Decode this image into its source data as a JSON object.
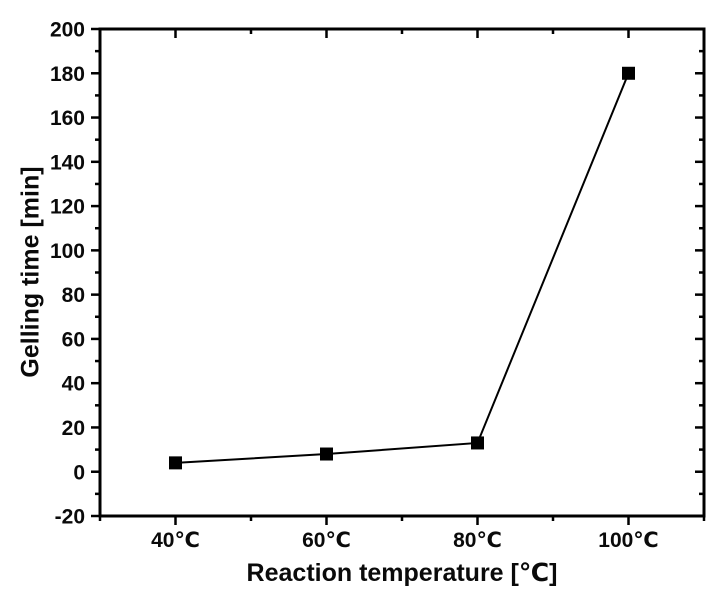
{
  "chart_data": {
    "type": "line",
    "title": "",
    "xlabel": "Reaction temperature [℃]",
    "ylabel": "Gelling time [min]",
    "x": [
      40,
      60,
      80,
      100
    ],
    "x_tick_labels": [
      "40℃",
      "60℃",
      "80℃",
      "100℃"
    ],
    "x_minor_ticks": [
      30,
      50,
      70,
      90,
      110
    ],
    "series": [
      {
        "name": "gelling-time",
        "values": [
          4,
          8,
          13,
          180
        ]
      }
    ],
    "xlim": [
      30,
      110
    ],
    "ylim": [
      -20,
      200
    ],
    "y_ticks": [
      -20,
      0,
      20,
      40,
      60,
      80,
      100,
      120,
      140,
      160,
      180,
      200
    ],
    "y_tick_labels": [
      "-20",
      "0",
      "20",
      "40",
      "60",
      "80",
      "100",
      "120",
      "140",
      "160",
      "180",
      "200"
    ],
    "y_minor_ticks": [
      -10,
      10,
      30,
      50,
      70,
      90,
      110,
      130,
      150,
      170,
      190
    ],
    "grid": false,
    "legend": "none",
    "marker": "square",
    "marker_size": 13,
    "colors": {
      "line": "#000000",
      "marker": "#000000",
      "axis": "#000000",
      "text": "#0a0a0a",
      "background": "#ffffff"
    }
  }
}
